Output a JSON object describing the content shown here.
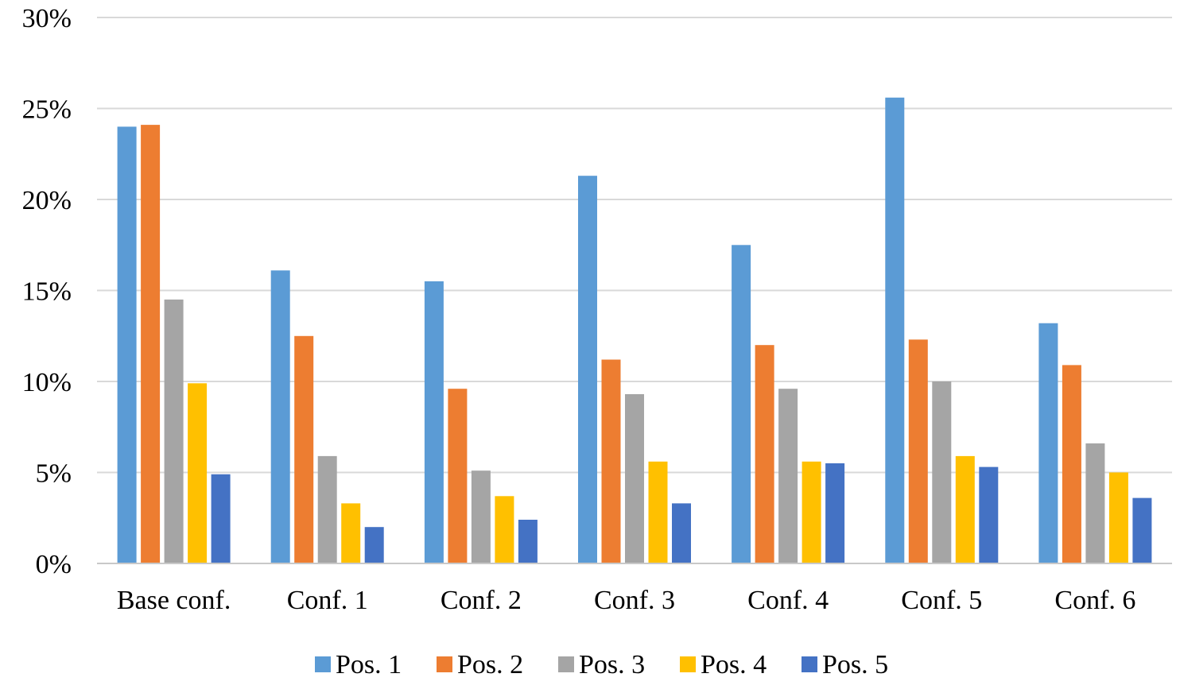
{
  "chart_data": {
    "type": "bar",
    "categories": [
      "Base conf.",
      "Conf. 1",
      "Conf. 2",
      "Conf. 3",
      "Conf. 4",
      "Conf. 5",
      "Conf. 6"
    ],
    "series": [
      {
        "name": "Pos. 1",
        "color": "#5b9bd5",
        "values": [
          24.0,
          16.1,
          15.5,
          21.3,
          17.5,
          25.6,
          13.2
        ]
      },
      {
        "name": "Pos. 2",
        "color": "#ed7d31",
        "values": [
          24.1,
          12.5,
          9.6,
          11.2,
          12.0,
          12.3,
          10.9
        ]
      },
      {
        "name": "Pos. 3",
        "color": "#a5a5a5",
        "values": [
          14.5,
          5.9,
          5.1,
          9.3,
          9.6,
          10.0,
          6.6
        ]
      },
      {
        "name": "Pos. 4",
        "color": "#ffc000",
        "values": [
          9.9,
          3.3,
          3.7,
          5.6,
          5.6,
          5.9,
          5.0
        ]
      },
      {
        "name": "Pos. 5",
        "color": "#4472c4",
        "values": [
          4.9,
          2.0,
          2.4,
          3.3,
          5.5,
          5.3,
          3.6
        ]
      }
    ],
    "ylim": [
      0,
      30
    ],
    "yticks": [
      "0%",
      "5%",
      "10%",
      "15%",
      "20%",
      "25%",
      "30%"
    ],
    "ytick_values": [
      0,
      5,
      10,
      15,
      20,
      25,
      30
    ],
    "grid": true,
    "legend": "bottom"
  }
}
